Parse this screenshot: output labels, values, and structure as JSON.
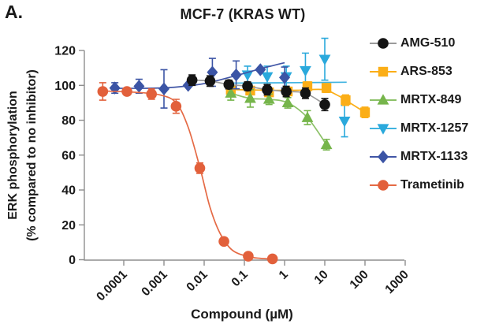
{
  "panel_label": "A.",
  "title": "MCF-7 (KRAS WT)",
  "x_axis": {
    "label": "Compound (µM)",
    "ticks": [
      "0.0001",
      "0.001",
      "0.01",
      "0.1",
      "1",
      "10",
      "100",
      "1000"
    ]
  },
  "y_axis": {
    "label_line1": "ERK phosphorylation",
    "label_line2": "(% compared to no inhibitor)",
    "ticks": [
      0,
      20,
      40,
      60,
      80,
      100,
      120
    ]
  },
  "chart_data": {
    "type": "line",
    "title": "MCF-7 (KRAS WT)",
    "xlabel": "Compound (µM)",
    "ylabel": "ERK phosphorylation (% compared to no inhibitor)",
    "x_scale": "log",
    "x_range": [
      0.0001,
      1000
    ],
    "ylim": [
      0,
      120
    ],
    "grid": false,
    "legend_position": "right",
    "series": [
      {
        "name": "AMG-510",
        "marker": "circle",
        "marker_color": "#141414",
        "line_color": "#9b9b9b",
        "err_color": "#141414",
        "x": [
          0.005,
          0.014,
          0.041,
          0.12,
          0.37,
          1.1,
          3.3,
          10
        ],
        "y": [
          103,
          102.5,
          100.5,
          99.5,
          97.5,
          96.5,
          95.5,
          89
        ],
        "err": [
          3,
          3,
          2.5,
          2.5,
          3,
          3,
          3,
          3.5
        ]
      },
      {
        "name": "ARS-853",
        "marker": "square",
        "marker_color": "#FBAE17",
        "line_color": "#FBAE17",
        "err_color": "#FBAE17",
        "x": [
          0.046,
          0.14,
          0.41,
          1.2,
          3.7,
          11,
          33,
          100
        ],
        "y": [
          97.5,
          97,
          96,
          96.5,
          99.5,
          98.5,
          91.5,
          84.5
        ],
        "err": [
          2,
          2,
          2,
          2,
          2.5,
          2.5,
          3,
          3
        ],
        "curve": [
          [
            0.046,
            97.6
          ],
          [
            0.41,
            97.2
          ],
          [
            2,
            97.2
          ],
          [
            9,
            97.6
          ],
          [
            20,
            94.5
          ],
          [
            33,
            91.5
          ],
          [
            100,
            84.5
          ]
        ]
      },
      {
        "name": "MRTX-849",
        "marker": "triangle-up",
        "marker_color": "#76B54B",
        "line_color": "#8CC168",
        "err_color": "#76B54B",
        "x": [
          0.046,
          0.14,
          0.41,
          1.2,
          3.7,
          11
        ],
        "y": [
          95.5,
          92.5,
          92,
          90,
          81.5,
          66
        ],
        "err": [
          4,
          5,
          3,
          3,
          4,
          3
        ]
      },
      {
        "name": "MRTX-1257",
        "marker": "triangle-down",
        "marker_color": "#2AA9DC",
        "line_color": "#3FB3E0",
        "err_color": "#2AA9DC",
        "x": [
          0.12,
          0.37,
          1.1,
          3.3,
          10,
          31
        ],
        "y": [
          106,
          105,
          105,
          108.5,
          115,
          79.5
        ],
        "err": [
          5,
          6,
          6,
          10,
          12,
          9
        ],
        "curve": [
          [
            0.04,
            101.3
          ],
          [
            1,
            101.5
          ],
          [
            35,
            101.8
          ]
        ]
      },
      {
        "name": "MRTX-1133",
        "marker": "diamond",
        "marker_color": "#3B54A5",
        "line_color": "#4156A6",
        "err_color": "#3B54A5",
        "x": [
          6e-05,
          0.00024,
          0.001,
          0.004,
          0.016,
          0.0625,
          0.25,
          1
        ],
        "y": [
          98.5,
          99.5,
          98,
          100,
          107.5,
          106,
          109,
          104.5
        ],
        "err": [
          3,
          4,
          11,
          0,
          8,
          8,
          0,
          6
        ],
        "curve": [
          [
            6e-05,
            98.3
          ],
          [
            0.0005,
            98.4
          ],
          [
            0.002,
            99
          ],
          [
            0.01,
            101
          ],
          [
            0.05,
            105
          ],
          [
            0.25,
            109.5
          ],
          [
            1,
            113
          ]
        ]
      },
      {
        "name": "Trametinib",
        "marker": "circle",
        "marker_color": "#E2603B",
        "line_color": "#E56A45",
        "err_color": "#E2603B",
        "x": [
          3e-05,
          0.00012,
          0.00049,
          0.002,
          0.0078,
          0.031,
          0.125,
          0.5
        ],
        "y": [
          96.5,
          96.5,
          95,
          88,
          52.5,
          10.5,
          2,
          0.5
        ],
        "err": [
          5,
          2,
          3,
          4,
          3,
          2,
          1.5,
          1
        ],
        "curve": [
          [
            3e-05,
            96.8
          ],
          [
            0.0002,
            96
          ],
          [
            0.0008,
            94.5
          ],
          [
            0.002,
            90
          ],
          [
            0.004,
            76
          ],
          [
            0.008,
            52
          ],
          [
            0.014,
            30
          ],
          [
            0.025,
            15
          ],
          [
            0.05,
            5.5
          ],
          [
            0.125,
            1.8
          ],
          [
            0.25,
            0.8
          ],
          [
            0.5,
            0.4
          ]
        ]
      }
    ]
  },
  "colors": {
    "axis": "#8f8f8f",
    "text": "#1a1a1a"
  }
}
